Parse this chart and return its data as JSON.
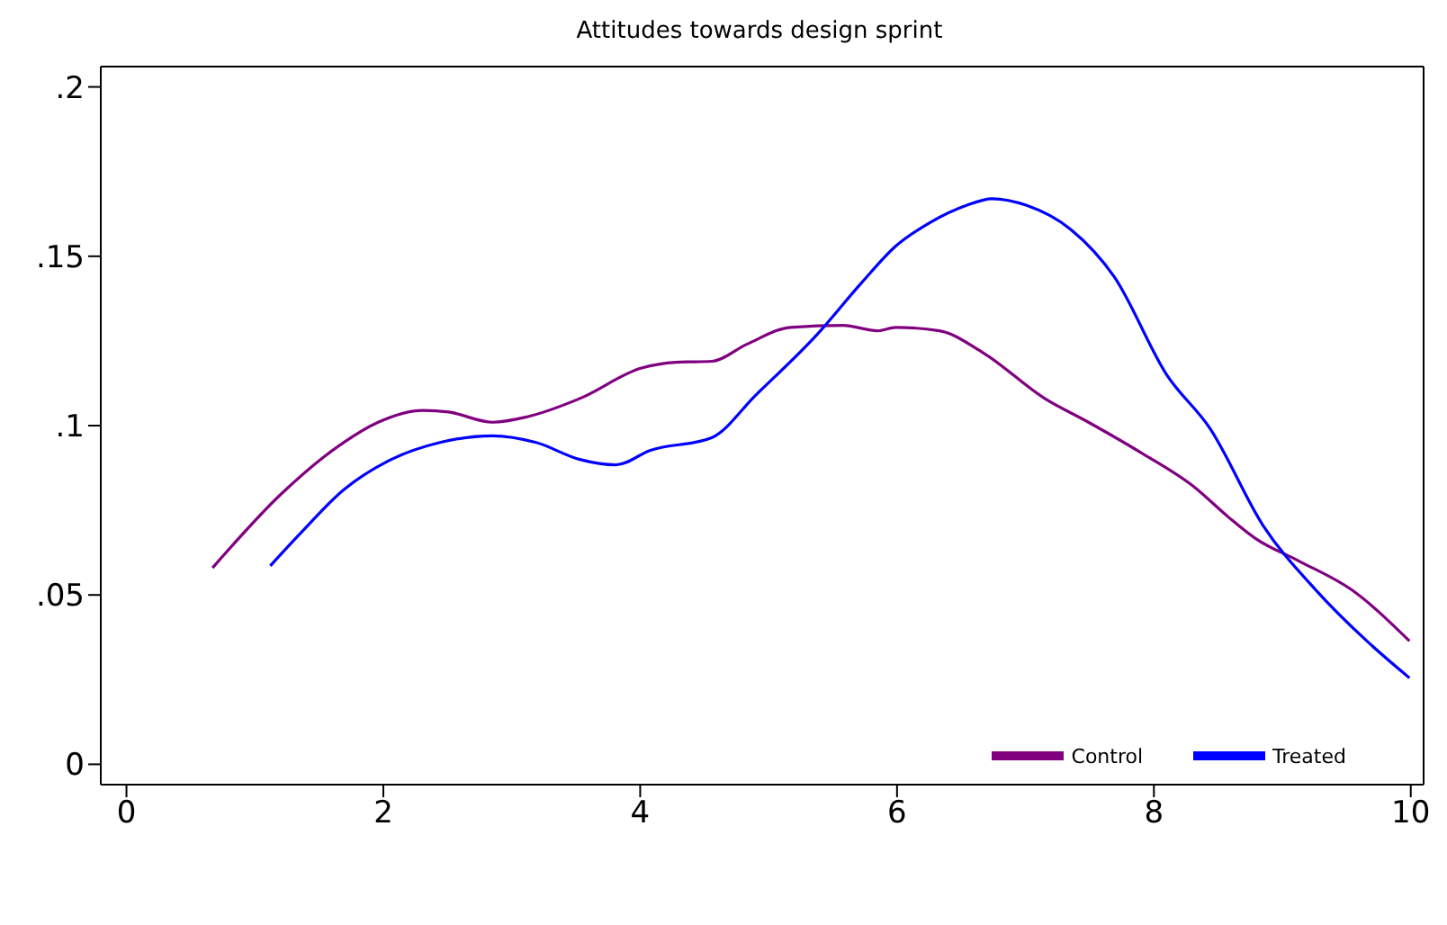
{
  "chart_data": {
    "type": "line",
    "title": "Attitudes towards design sprint",
    "xlim": [
      -0.2,
      10.1
    ],
    "xticks": [
      0,
      2,
      4,
      6,
      8,
      10
    ],
    "ylim": [
      -0.006,
      0.206
    ],
    "yticks": [
      0,
      {
        "value": 0.05,
        "label": ".05"
      },
      {
        "value": 0.1,
        "label": ".1"
      },
      {
        "value": 0.15,
        "label": ".15"
      },
      {
        "value": 0.2,
        "label": ".2"
      }
    ],
    "grid": false,
    "legend": "bottom right",
    "marker": "none",
    "line_style": "solid",
    "series": [
      {
        "name": "Control",
        "color": "#800080",
        "x": [
          0.67,
          1.21,
          1.69,
          1.96,
          2.31,
          2.51,
          2.85,
          3.12,
          3.53,
          4.01,
          4.28,
          4.56,
          4.83,
          5.17,
          5.58,
          5.85,
          5.99,
          6.33,
          6.67,
          7.15,
          7.49,
          7.9,
          8.31,
          8.58,
          8.79,
          9.13,
          9.54,
          9.99
        ],
        "values": [
          0.058,
          0.08,
          0.095,
          0.101,
          0.1045,
          0.104,
          0.101,
          0.1026,
          0.108,
          0.117,
          0.1187,
          0.119,
          0.124,
          0.129,
          0.1296,
          0.128,
          0.129,
          0.128,
          0.1215,
          0.108,
          0.101,
          0.092,
          0.082,
          0.073,
          0.0667,
          0.06,
          0.0515,
          0.0364
        ]
      },
      {
        "name": "Treated",
        "color": "#0000ff",
        "x": [
          1.12,
          1.35,
          1.69,
          2.03,
          2.44,
          2.85,
          3.19,
          3.53,
          3.81,
          4.08,
          4.56,
          4.9,
          5.38,
          5.72,
          5.99,
          6.26,
          6.54,
          6.74,
          7.01,
          7.35,
          7.69,
          8.1,
          8.44,
          8.85,
          9.26,
          9.67,
          9.99
        ],
        "values": [
          0.0586,
          0.068,
          0.081,
          0.0894,
          0.095,
          0.097,
          0.095,
          0.09,
          0.0884,
          0.0927,
          0.0965,
          0.109,
          0.127,
          0.142,
          0.153,
          0.16,
          0.165,
          0.167,
          0.165,
          0.158,
          0.144,
          0.115,
          0.099,
          0.0705,
          0.0515,
          0.036,
          0.0255
        ]
      }
    ]
  }
}
